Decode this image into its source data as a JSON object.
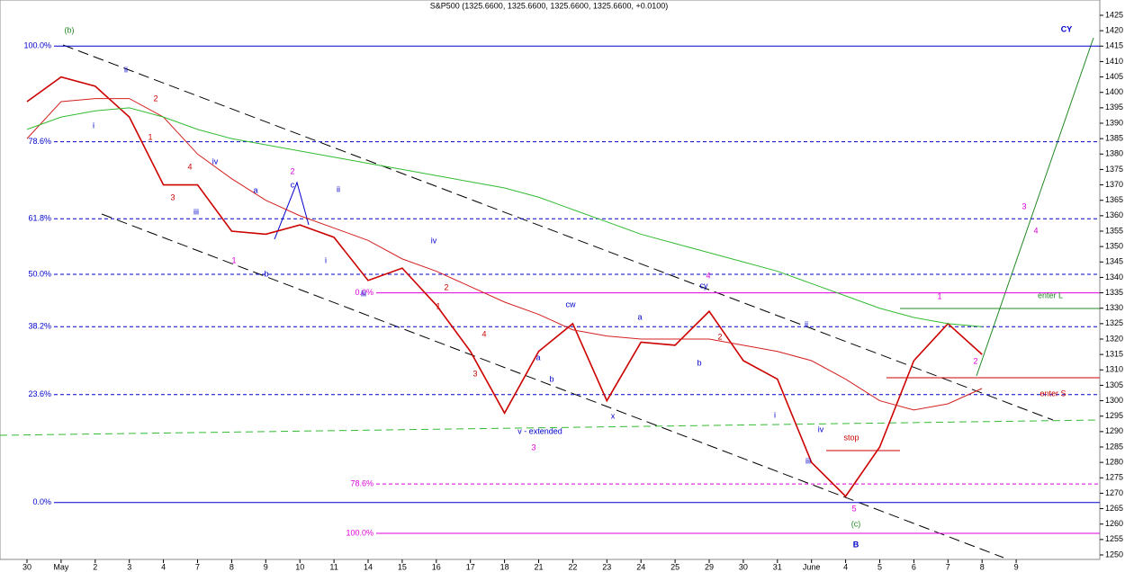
{
  "chart_data": {
    "type": "line",
    "title": "S&P500 (1325.6600, 1325.6600, 1325.6600, 1325.6600, +0.0100)",
    "categories": [
      "30",
      "May",
      "2",
      "3",
      "4",
      "7",
      "8",
      "9",
      "10",
      "11",
      "14",
      "15",
      "16",
      "17",
      "18",
      "21",
      "22",
      "23",
      "24",
      "25",
      "29",
      "30",
      "31",
      "June",
      "4",
      "5",
      "6",
      "7",
      "8",
      "9"
    ],
    "series": [
      {
        "name": "S&P500",
        "color": "#cc0000",
        "values": [
          1397,
          1405,
          1402,
          1392,
          1370,
          1370,
          1355,
          1354,
          1357,
          1353,
          1339,
          1343,
          1331,
          1316,
          1296,
          1316,
          1325,
          1300,
          1319,
          1318,
          1329,
          1313,
          1307,
          1280,
          1269,
          1285,
          1313,
          1325,
          1315,
          null
        ]
      },
      {
        "name": "MA red",
        "color": "#d42020",
        "values": [
          1385,
          1397,
          1398,
          1398,
          1392,
          1380,
          1372,
          1365,
          1360,
          1356,
          1352,
          1346,
          1342,
          1337,
          1332,
          1328,
          1323,
          1321,
          1320,
          1320,
          1320,
          1318,
          1316,
          1313,
          1307,
          1300,
          1297,
          1299,
          1304,
          null
        ]
      },
      {
        "name": "MA green",
        "color": "#33bb33",
        "values": [
          1388,
          1392,
          1394,
          1395,
          1392,
          1388,
          1385,
          1383,
          1381,
          1379,
          1377,
          1375,
          1373,
          1371,
          1369,
          1366,
          1362,
          1358,
          1354,
          1351,
          1348,
          1345,
          1342,
          1338,
          1334,
          1330,
          1327,
          1325,
          1324,
          null
        ]
      }
    ],
    "ylim": [
      1250,
      1425
    ],
    "yticks": [
      1250,
      1255,
      1260,
      1265,
      1270,
      1275,
      1280,
      1285,
      1290,
      1295,
      1300,
      1305,
      1310,
      1315,
      1320,
      1325,
      1330,
      1335,
      1340,
      1345,
      1350,
      1355,
      1360,
      1365,
      1370,
      1375,
      1380,
      1385,
      1390,
      1395,
      1400,
      1405,
      1410,
      1415,
      1420,
      1425
    ],
    "levels": [
      {
        "label": "100.0%",
        "value": 1415,
        "color": "#0000cc"
      },
      {
        "label": "78.6%",
        "value": 1384,
        "color": "#0000cc"
      },
      {
        "label": "61.8%",
        "value": 1359,
        "color": "#0000cc"
      },
      {
        "label": "50.0%",
        "value": 1341,
        "color": "#0000cc"
      },
      {
        "label": "38.2%",
        "value": 1324,
        "color": "#0000cc"
      },
      {
        "label": "23.6%",
        "value": 1302,
        "color": "#0000cc"
      },
      {
        "label": "0.0%",
        "value": 1267,
        "color": "#0000cc"
      },
      {
        "label": "0.0%",
        "value": 1335,
        "color": "#dd00dd"
      },
      {
        "label": "78.6%",
        "value": 1273,
        "color": "#dd00dd"
      },
      {
        "label": "100.0%",
        "value": 1257,
        "color": "#dd00dd"
      }
    ],
    "annotations": [
      {
        "text": "(b)",
        "color": "#228822"
      },
      {
        "text": "ii",
        "color": "#0000cc"
      },
      {
        "text": "i",
        "color": "#0000cc"
      },
      {
        "text": "2",
        "color": "#cc0000"
      },
      {
        "text": "1",
        "color": "#cc0000"
      },
      {
        "text": "4",
        "color": "#cc0000"
      },
      {
        "text": "3",
        "color": "#cc0000"
      },
      {
        "text": "iv",
        "color": "#0000cc"
      },
      {
        "text": "iii",
        "color": "#0000cc"
      },
      {
        "text": "a",
        "color": "#0000cc"
      },
      {
        "text": "2",
        "color": "#dd00dd"
      },
      {
        "text": "c",
        "color": "#0000cc"
      },
      {
        "text": "ii",
        "color": "#0000cc"
      },
      {
        "text": "1",
        "color": "#dd00dd"
      },
      {
        "text": "b",
        "color": "#0000cc"
      },
      {
        "text": "i",
        "color": "#0000cc"
      },
      {
        "text": "iv",
        "color": "#0000cc"
      },
      {
        "text": "2",
        "color": "#cc0000"
      },
      {
        "text": "1",
        "color": "#cc0000"
      },
      {
        "text": "iii",
        "color": "#0000cc"
      },
      {
        "text": "4",
        "color": "#cc0000"
      },
      {
        "text": "3",
        "color": "#cc0000"
      },
      {
        "text": "a",
        "color": "#0000cc"
      },
      {
        "text": "b",
        "color": "#0000cc"
      },
      {
        "text": "cw",
        "color": "#0000cc"
      },
      {
        "text": "v - extended",
        "color": "#0000cc"
      },
      {
        "text": "3",
        "color": "#dd00dd"
      },
      {
        "text": "x",
        "color": "#0000cc"
      },
      {
        "text": "a",
        "color": "#0000cc"
      },
      {
        "text": "b",
        "color": "#0000cc"
      },
      {
        "text": "4",
        "color": "#dd00dd"
      },
      {
        "text": "cy",
        "color": "#0000cc"
      },
      {
        "text": "2",
        "color": "#cc0000"
      },
      {
        "text": "ii",
        "color": "#0000cc"
      },
      {
        "text": "i",
        "color": "#0000cc"
      },
      {
        "text": "iv",
        "color": "#0000cc"
      },
      {
        "text": "iii",
        "color": "#0000cc"
      },
      {
        "text": "5",
        "color": "#dd00dd"
      },
      {
        "text": "(c)",
        "color": "#228822"
      },
      {
        "text": "B",
        "color": "#0000cc"
      },
      {
        "text": "1",
        "color": "#dd00dd"
      },
      {
        "text": "2",
        "color": "#dd00dd"
      },
      {
        "text": "3",
        "color": "#dd00dd"
      },
      {
        "text": "4",
        "color": "#dd00dd"
      },
      {
        "text": "CY",
        "color": "#0000cc"
      },
      {
        "text": "stop",
        "color": "#cc0000"
      },
      {
        "text": "enter L",
        "color": "#228822"
      },
      {
        "text": "enter S",
        "color": "#cc0000"
      }
    ]
  }
}
